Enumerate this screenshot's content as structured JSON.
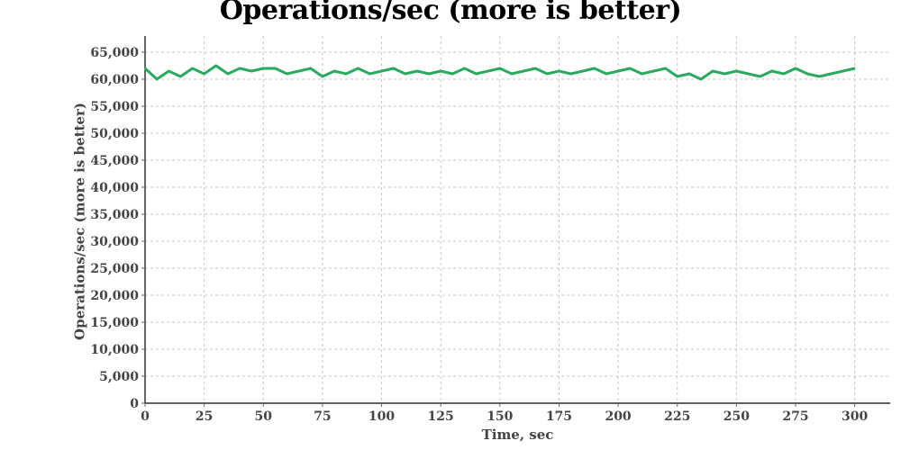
{
  "chart_data": {
    "type": "line",
    "title": "Operations/sec (more is better)",
    "xlabel": "Time, sec",
    "ylabel": "Operations/sec (more is better)",
    "xlim": [
      0,
      315
    ],
    "ylim": [
      0,
      68000
    ],
    "x_ticks": [
      0,
      25,
      50,
      75,
      100,
      125,
      150,
      175,
      200,
      225,
      250,
      275,
      300
    ],
    "x_tick_labels": [
      "0",
      "25",
      "50",
      "75",
      "100",
      "125",
      "150",
      "175",
      "200",
      "225",
      "250",
      "275",
      "300"
    ],
    "y_ticks": [
      0,
      5000,
      10000,
      15000,
      20000,
      25000,
      30000,
      35000,
      40000,
      45000,
      50000,
      55000,
      60000,
      65000
    ],
    "y_tick_labels": [
      "0",
      "5,000",
      "10,000",
      "15,000",
      "20,000",
      "25,000",
      "30,000",
      "35,000",
      "40,000",
      "45,000",
      "50,000",
      "55,000",
      "60,000",
      "65,000"
    ],
    "grid": true,
    "colors": {
      "series": "#2aaa5f",
      "grid": "#c8c8c8",
      "axis": "#000000"
    },
    "series": [
      {
        "x": [
          0,
          5,
          10,
          15,
          20,
          25,
          30,
          35,
          40,
          45,
          50,
          55,
          60,
          65,
          70,
          75,
          80,
          85,
          90,
          95,
          100,
          105,
          110,
          115,
          120,
          125,
          130,
          135,
          140,
          145,
          150,
          155,
          160,
          165,
          170,
          175,
          180,
          185,
          190,
          195,
          200,
          205,
          210,
          215,
          220,
          225,
          230,
          235,
          240,
          245,
          250,
          255,
          260,
          265,
          270,
          275,
          280,
          285,
          290,
          295,
          300
        ],
        "y": [
          62000,
          60000,
          61500,
          60500,
          62000,
          61000,
          62500,
          61000,
          62000,
          61500,
          62000,
          62000,
          61000,
          61500,
          62000,
          60500,
          61500,
          61000,
          62000,
          61000,
          61500,
          62000,
          61000,
          61500,
          61000,
          61500,
          61000,
          62000,
          61000,
          61500,
          62000,
          61000,
          61500,
          62000,
          61000,
          61500,
          61000,
          61500,
          62000,
          61000,
          61500,
          62000,
          61000,
          61500,
          62000,
          60500,
          61000,
          60000,
          61500,
          61000,
          61500,
          61000,
          60500,
          61500,
          61000,
          62000,
          61000,
          60500,
          61000,
          61500,
          62000
        ]
      }
    ]
  }
}
